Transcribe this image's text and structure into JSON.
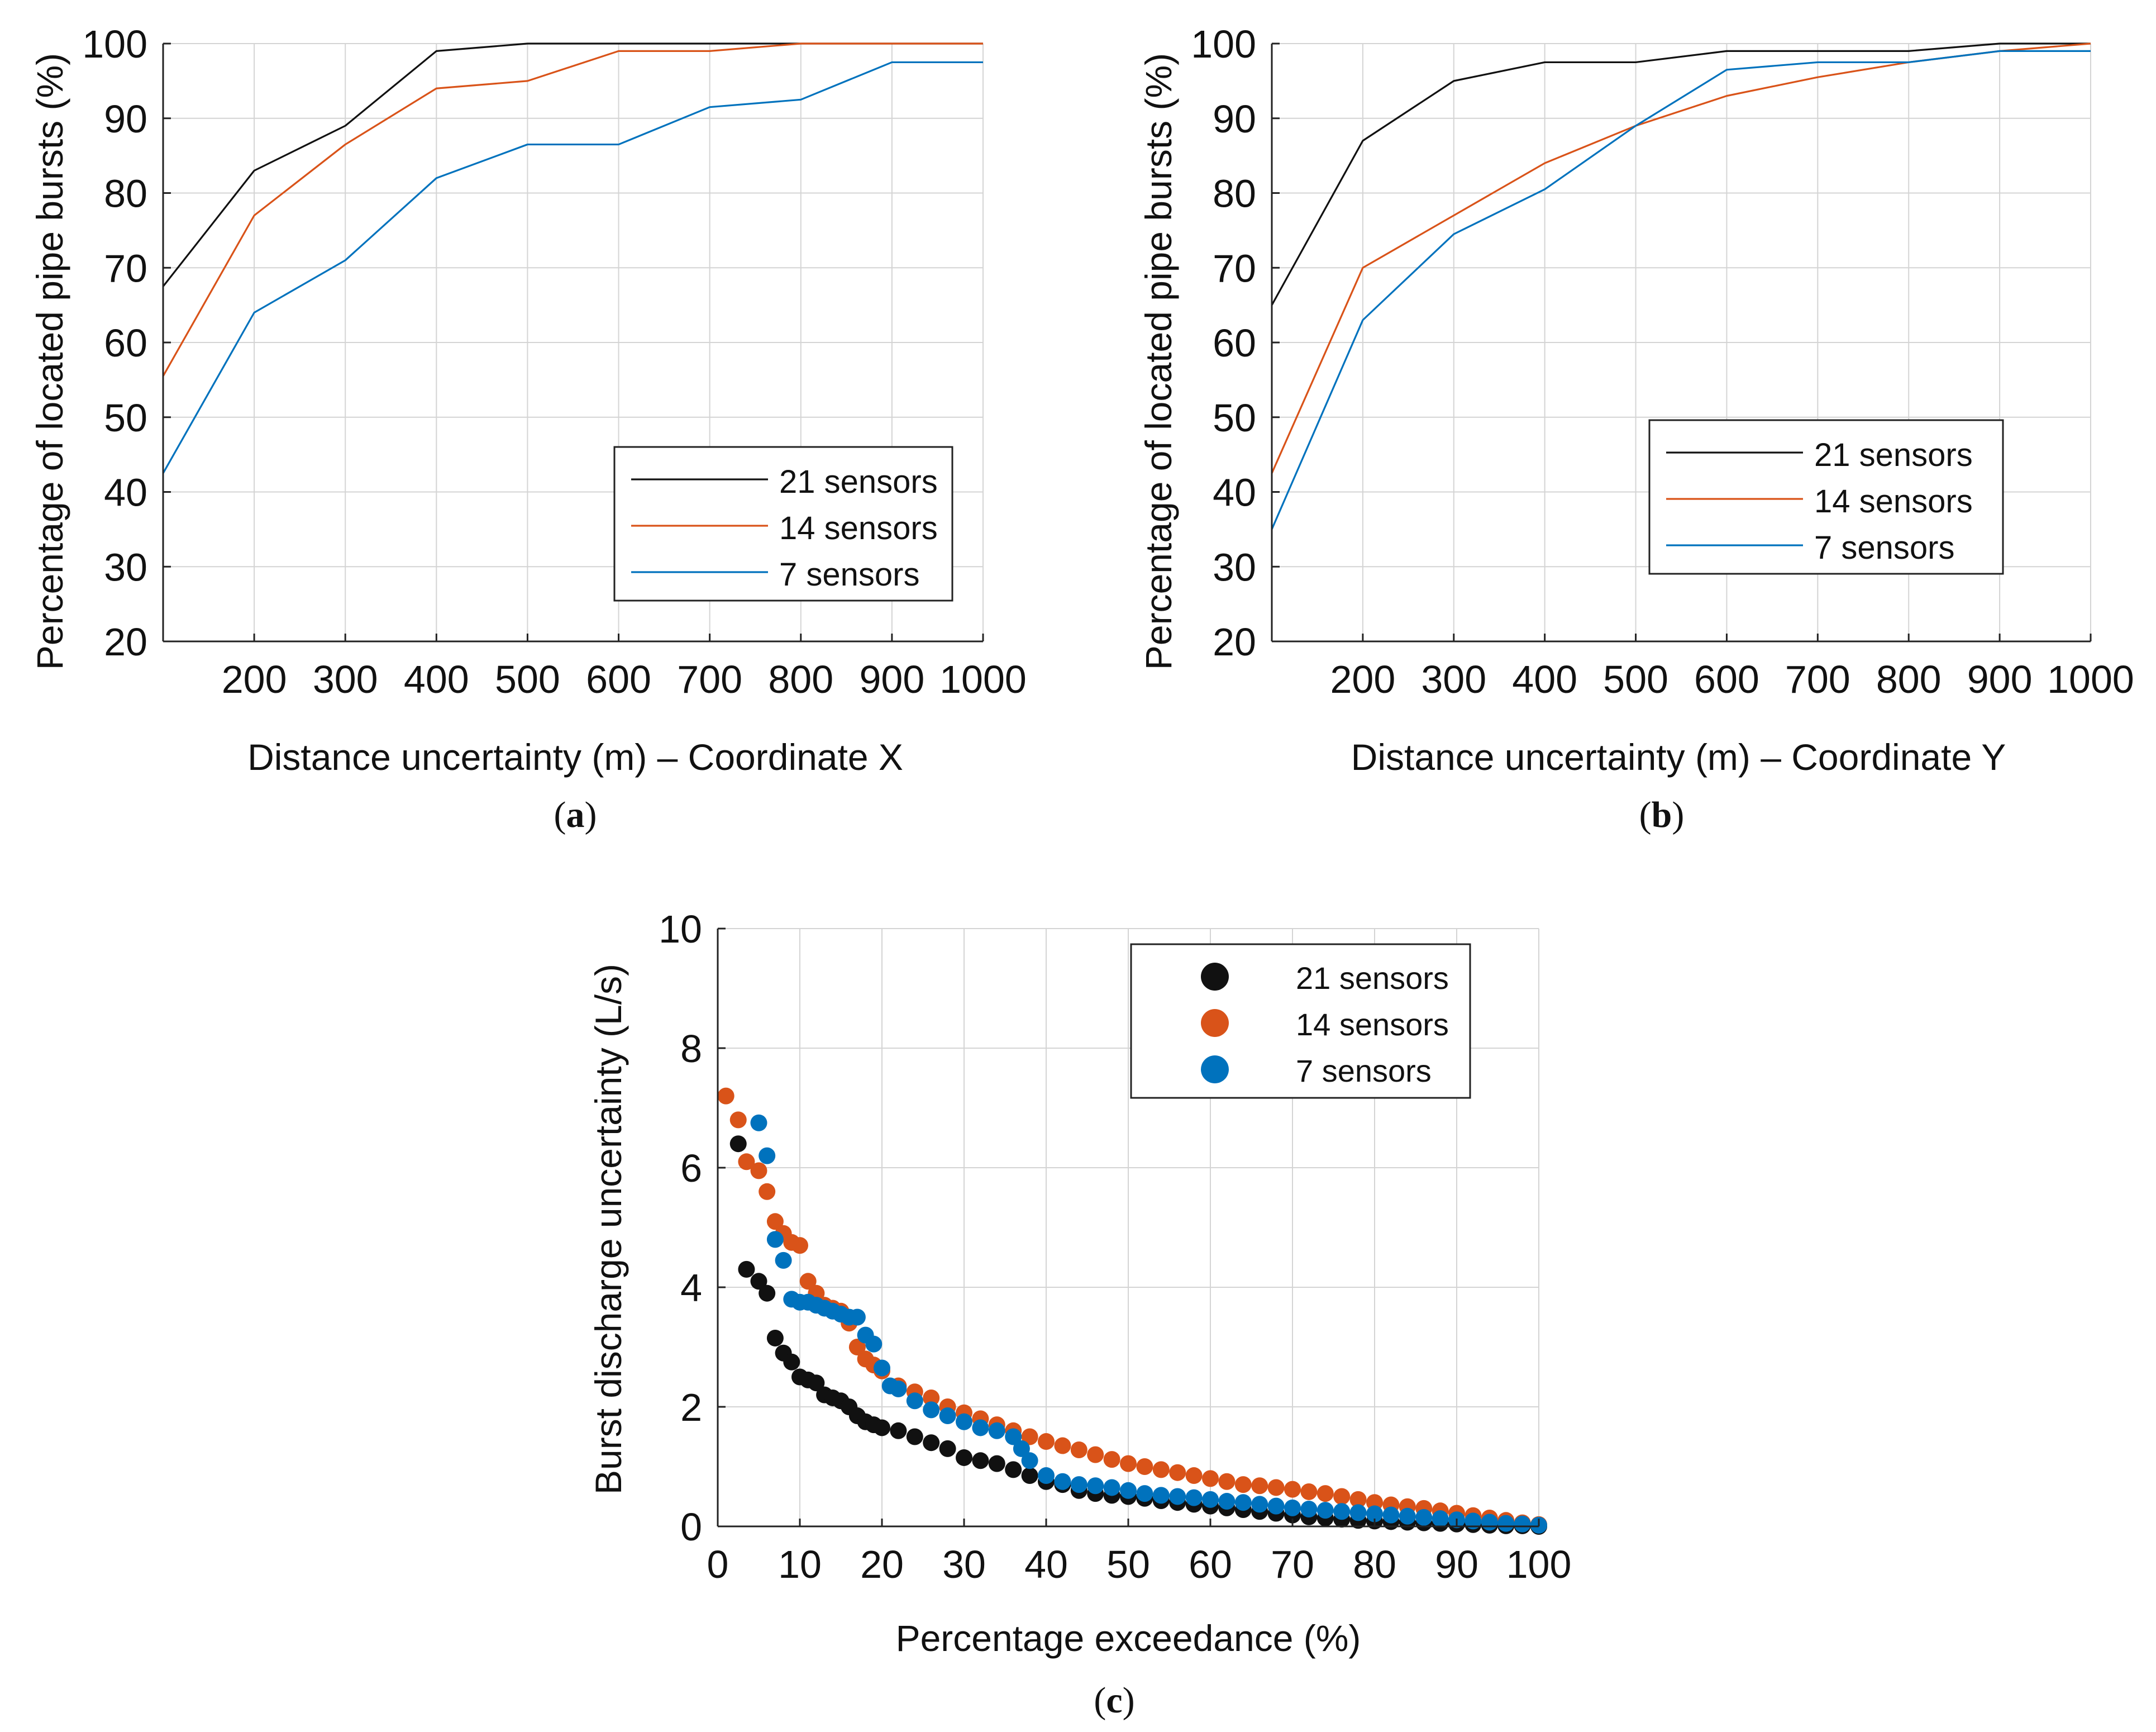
{
  "colors": {
    "black": "#111111",
    "orange": "#d95319",
    "blue": "#0072bd",
    "grid": "#d4d4d4",
    "axis": "#222222"
  },
  "chart_data": [
    {
      "id": "a",
      "type": "line",
      "panel_label": "a",
      "xlabel": "Distance uncertainty (m) – Coordinate X",
      "ylabel": "Percentage of located pipe bursts (%)",
      "xlim": [
        100,
        1000
      ],
      "ylim": [
        20,
        100
      ],
      "xticks": [
        200,
        300,
        400,
        500,
        600,
        700,
        800,
        900,
        1000
      ],
      "yticks": [
        20,
        30,
        40,
        50,
        60,
        70,
        80,
        90,
        100
      ],
      "grid": true,
      "legend_position": "lower-right",
      "x": [
        100,
        200,
        300,
        400,
        500,
        600,
        700,
        800,
        900,
        1000
      ],
      "series": [
        {
          "name": "21 sensors",
          "color": "#111111",
          "values": [
            67.5,
            83,
            89,
            99,
            100,
            100,
            100,
            100,
            100,
            100
          ]
        },
        {
          "name": "14 sensors",
          "color": "#d95319",
          "values": [
            55.5,
            77,
            86.5,
            94,
            95,
            99,
            99,
            100,
            100,
            100
          ]
        },
        {
          "name": "7 sensors",
          "color": "#0072bd",
          "values": [
            42.5,
            64,
            71,
            82,
            86.5,
            86.5,
            91.5,
            92.5,
            97.5,
            97.5
          ]
        }
      ]
    },
    {
      "id": "b",
      "type": "line",
      "panel_label": "b",
      "xlabel": "Distance uncertainty (m) – Coordinate Y",
      "ylabel": "Percentage of located pipe bursts (%)",
      "xlim": [
        100,
        1000
      ],
      "ylim": [
        20,
        100
      ],
      "xticks": [
        200,
        300,
        400,
        500,
        600,
        700,
        800,
        900,
        1000
      ],
      "yticks": [
        20,
        30,
        40,
        50,
        60,
        70,
        80,
        90,
        100
      ],
      "grid": true,
      "legend_position": "lower-right",
      "x": [
        100,
        200,
        300,
        400,
        500,
        600,
        700,
        800,
        900,
        1000
      ],
      "series": [
        {
          "name": "21 sensors",
          "color": "#111111",
          "values": [
            65,
            87,
            95,
            97.5,
            97.5,
            99,
            99,
            99,
            100,
            100
          ]
        },
        {
          "name": "14 sensors",
          "color": "#d95319",
          "values": [
            42.5,
            70,
            77,
            84,
            89,
            93,
            95.5,
            97.5,
            99,
            100
          ]
        },
        {
          "name": "7 sensors",
          "color": "#0072bd",
          "values": [
            35,
            63,
            74.5,
            80.5,
            89,
            96.5,
            97.5,
            97.5,
            99,
            99
          ]
        }
      ]
    },
    {
      "id": "c",
      "type": "scatter",
      "panel_label": "c",
      "xlabel": "Percentage exceedance (%)",
      "ylabel": "Burst discharge uncertainty (L/s)",
      "xlim": [
        0,
        100
      ],
      "ylim": [
        0,
        10
      ],
      "xticks": [
        0,
        10,
        20,
        30,
        40,
        50,
        60,
        70,
        80,
        90,
        100
      ],
      "yticks": [
        0,
        2,
        4,
        6,
        8,
        10
      ],
      "grid": true,
      "legend_position": "top-right",
      "series": [
        {
          "name": "21 sensors",
          "color": "#111111",
          "points": [
            [
              2.5,
              6.4
            ],
            [
              3.5,
              4.3
            ],
            [
              5,
              4.1
            ],
            [
              6,
              3.9
            ],
            [
              7,
              3.15
            ],
            [
              8,
              2.9
            ],
            [
              9,
              2.75
            ],
            [
              10,
              2.5
            ],
            [
              11,
              2.45
            ],
            [
              12,
              2.4
            ],
            [
              13,
              2.2
            ],
            [
              14,
              2.15
            ],
            [
              15,
              2.1
            ],
            [
              16,
              2.0
            ],
            [
              17,
              1.85
            ],
            [
              18,
              1.75
            ],
            [
              19,
              1.7
            ],
            [
              20,
              1.65
            ],
            [
              22,
              1.6
            ],
            [
              24,
              1.5
            ],
            [
              26,
              1.4
            ],
            [
              28,
              1.3
            ],
            [
              30,
              1.15
            ],
            [
              32,
              1.1
            ],
            [
              34,
              1.05
            ],
            [
              36,
              0.95
            ],
            [
              38,
              0.85
            ],
            [
              40,
              0.75
            ],
            [
              42,
              0.7
            ],
            [
              44,
              0.6
            ],
            [
              46,
              0.55
            ],
            [
              48,
              0.52
            ],
            [
              50,
              0.5
            ],
            [
              52,
              0.47
            ],
            [
              54,
              0.43
            ],
            [
              56,
              0.4
            ],
            [
              58,
              0.37
            ],
            [
              60,
              0.34
            ],
            [
              62,
              0.31
            ],
            [
              64,
              0.28
            ],
            [
              66,
              0.25
            ],
            [
              68,
              0.22
            ],
            [
              70,
              0.19
            ],
            [
              72,
              0.16
            ],
            [
              74,
              0.14
            ],
            [
              76,
              0.12
            ],
            [
              78,
              0.1
            ],
            [
              80,
              0.09
            ],
            [
              82,
              0.08
            ],
            [
              84,
              0.07
            ],
            [
              86,
              0.06
            ],
            [
              88,
              0.05
            ],
            [
              90,
              0.04
            ],
            [
              92,
              0.03
            ],
            [
              94,
              0.02
            ],
            [
              96,
              0.01
            ],
            [
              98,
              0.01
            ],
            [
              100,
              0.0
            ]
          ]
        },
        {
          "name": "14 sensors",
          "color": "#d95319",
          "points": [
            [
              1,
              7.2
            ],
            [
              2.5,
              6.8
            ],
            [
              3.5,
              6.1
            ],
            [
              5,
              5.95
            ],
            [
              6,
              5.6
            ],
            [
              7,
              5.1
            ],
            [
              8,
              4.9
            ],
            [
              9,
              4.75
            ],
            [
              10,
              4.7
            ],
            [
              11,
              4.1
            ],
            [
              12,
              3.9
            ],
            [
              13,
              3.7
            ],
            [
              14,
              3.65
            ],
            [
              15,
              3.6
            ],
            [
              16,
              3.4
            ],
            [
              17,
              3.0
            ],
            [
              18,
              2.8
            ],
            [
              19,
              2.7
            ],
            [
              20,
              2.6
            ],
            [
              22,
              2.35
            ],
            [
              24,
              2.25
            ],
            [
              26,
              2.15
            ],
            [
              28,
              2.0
            ],
            [
              30,
              1.9
            ],
            [
              32,
              1.8
            ],
            [
              34,
              1.7
            ],
            [
              36,
              1.6
            ],
            [
              38,
              1.5
            ],
            [
              40,
              1.42
            ],
            [
              42,
              1.35
            ],
            [
              44,
              1.28
            ],
            [
              46,
              1.2
            ],
            [
              48,
              1.12
            ],
            [
              50,
              1.05
            ],
            [
              52,
              1.0
            ],
            [
              54,
              0.95
            ],
            [
              56,
              0.9
            ],
            [
              58,
              0.85
            ],
            [
              60,
              0.8
            ],
            [
              62,
              0.75
            ],
            [
              64,
              0.7
            ],
            [
              66,
              0.68
            ],
            [
              68,
              0.65
            ],
            [
              70,
              0.62
            ],
            [
              72,
              0.58
            ],
            [
              74,
              0.55
            ],
            [
              76,
              0.5
            ],
            [
              78,
              0.45
            ],
            [
              80,
              0.4
            ],
            [
              82,
              0.36
            ],
            [
              84,
              0.33
            ],
            [
              86,
              0.3
            ],
            [
              88,
              0.26
            ],
            [
              90,
              0.22
            ],
            [
              92,
              0.18
            ],
            [
              94,
              0.14
            ],
            [
              96,
              0.1
            ],
            [
              98,
              0.06
            ],
            [
              100,
              0.03
            ]
          ]
        },
        {
          "name": "7 sensors",
          "color": "#0072bd",
          "points": [
            [
              5,
              6.75
            ],
            [
              6,
              6.2
            ],
            [
              7,
              4.8
            ],
            [
              8,
              4.45
            ],
            [
              9,
              3.8
            ],
            [
              10,
              3.75
            ],
            [
              11,
              3.75
            ],
            [
              12,
              3.7
            ],
            [
              13,
              3.65
            ],
            [
              14,
              3.6
            ],
            [
              15,
              3.55
            ],
            [
              16,
              3.5
            ],
            [
              17,
              3.5
            ],
            [
              18,
              3.2
            ],
            [
              19,
              3.05
            ],
            [
              20,
              2.65
            ],
            [
              21,
              2.35
            ],
            [
              22,
              2.3
            ],
            [
              24,
              2.1
            ],
            [
              26,
              1.95
            ],
            [
              28,
              1.85
            ],
            [
              30,
              1.75
            ],
            [
              32,
              1.65
            ],
            [
              34,
              1.6
            ],
            [
              36,
              1.5
            ],
            [
              37,
              1.3
            ],
            [
              38,
              1.1
            ],
            [
              40,
              0.85
            ],
            [
              42,
              0.75
            ],
            [
              44,
              0.7
            ],
            [
              46,
              0.68
            ],
            [
              48,
              0.65
            ],
            [
              50,
              0.6
            ],
            [
              52,
              0.55
            ],
            [
              54,
              0.52
            ],
            [
              56,
              0.5
            ],
            [
              58,
              0.48
            ],
            [
              60,
              0.45
            ],
            [
              62,
              0.42
            ],
            [
              64,
              0.4
            ],
            [
              66,
              0.37
            ],
            [
              68,
              0.34
            ],
            [
              70,
              0.31
            ],
            [
              72,
              0.29
            ],
            [
              74,
              0.27
            ],
            [
              76,
              0.25
            ],
            [
              78,
              0.23
            ],
            [
              80,
              0.21
            ],
            [
              82,
              0.19
            ],
            [
              84,
              0.17
            ],
            [
              86,
              0.15
            ],
            [
              88,
              0.13
            ],
            [
              90,
              0.11
            ],
            [
              92,
              0.09
            ],
            [
              94,
              0.07
            ],
            [
              96,
              0.05
            ],
            [
              98,
              0.04
            ],
            [
              100,
              0.02
            ]
          ]
        }
      ]
    }
  ]
}
